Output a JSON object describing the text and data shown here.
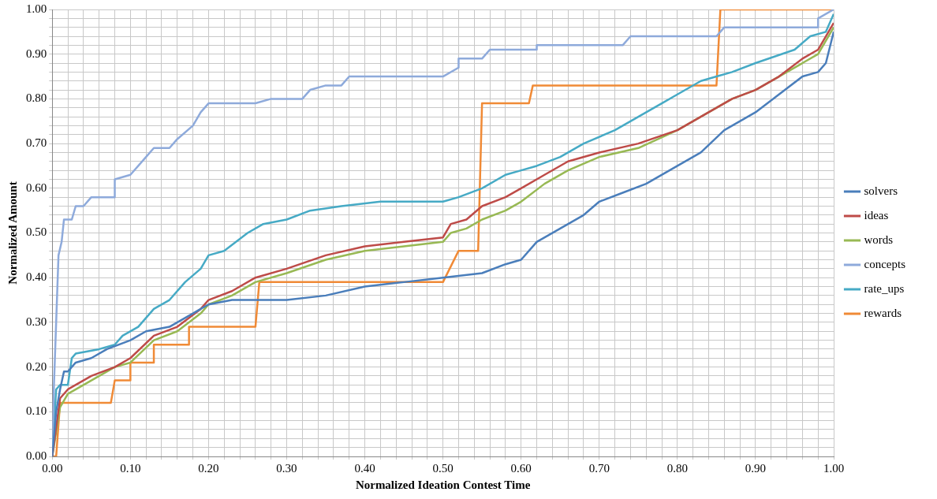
{
  "chart_data": {
    "type": "line",
    "xlabel": "Normalized Ideation Contest Time",
    "ylabel": "Normalized Amount",
    "xlim": [
      0,
      1
    ],
    "ylim": [
      0,
      1
    ],
    "xticks": [
      {
        "value": 0,
        "label": "0.00"
      },
      {
        "value": 0.02,
        "label": null
      },
      {
        "value": 0.04,
        "label": null
      },
      {
        "value": 0.06,
        "label": null
      },
      {
        "value": 0.08,
        "label": null
      },
      {
        "value": 0.1,
        "label": "0.10"
      },
      {
        "value": 0.12,
        "label": null
      },
      {
        "value": 0.14,
        "label": null
      },
      {
        "value": 0.16,
        "label": null
      },
      {
        "value": 0.18,
        "label": null
      },
      {
        "value": 0.2,
        "label": "0.20"
      },
      {
        "value": 0.22,
        "label": null
      },
      {
        "value": 0.24,
        "label": null
      },
      {
        "value": 0.26,
        "label": null
      },
      {
        "value": 0.28,
        "label": null
      },
      {
        "value": 0.3,
        "label": "0.30"
      },
      {
        "value": 0.32,
        "label": null
      },
      {
        "value": 0.34,
        "label": null
      },
      {
        "value": 0.36,
        "label": null
      },
      {
        "value": 0.38,
        "label": null
      },
      {
        "value": 0.4,
        "label": "0.40"
      },
      {
        "value": 0.42,
        "label": null
      },
      {
        "value": 0.44,
        "label": null
      },
      {
        "value": 0.46,
        "label": null
      },
      {
        "value": 0.48,
        "label": null
      },
      {
        "value": 0.5,
        "label": "0.50"
      },
      {
        "value": 0.52,
        "label": null
      },
      {
        "value": 0.54,
        "label": null
      },
      {
        "value": 0.56,
        "label": null
      },
      {
        "value": 0.58,
        "label": null
      },
      {
        "value": 0.6,
        "label": "0.60"
      },
      {
        "value": 0.62,
        "label": null
      },
      {
        "value": 0.64,
        "label": null
      },
      {
        "value": 0.66,
        "label": null
      },
      {
        "value": 0.68,
        "label": null
      },
      {
        "value": 0.7,
        "label": "0.70"
      },
      {
        "value": 0.72,
        "label": null
      },
      {
        "value": 0.74,
        "label": null
      },
      {
        "value": 0.76,
        "label": null
      },
      {
        "value": 0.78,
        "label": null
      },
      {
        "value": 0.8,
        "label": "0.80"
      },
      {
        "value": 0.82,
        "label": null
      },
      {
        "value": 0.84,
        "label": null
      },
      {
        "value": 0.86,
        "label": null
      },
      {
        "value": 0.88,
        "label": null
      },
      {
        "value": 0.9,
        "label": "0.90"
      },
      {
        "value": 0.92,
        "label": null
      },
      {
        "value": 0.94,
        "label": null
      },
      {
        "value": 0.96,
        "label": null
      },
      {
        "value": 0.98,
        "label": null
      },
      {
        "value": 1,
        "label": "1.00"
      }
    ],
    "yticks": [
      {
        "value": 0,
        "label": "0.00"
      },
      {
        "value": 0.02,
        "label": null
      },
      {
        "value": 0.04,
        "label": null
      },
      {
        "value": 0.06,
        "label": null
      },
      {
        "value": 0.08,
        "label": null
      },
      {
        "value": 0.1,
        "label": "0.10"
      },
      {
        "value": 0.12,
        "label": null
      },
      {
        "value": 0.14,
        "label": null
      },
      {
        "value": 0.16,
        "label": null
      },
      {
        "value": 0.18,
        "label": null
      },
      {
        "value": 0.2,
        "label": "0.20"
      },
      {
        "value": 0.22,
        "label": null
      },
      {
        "value": 0.24,
        "label": null
      },
      {
        "value": 0.26,
        "label": null
      },
      {
        "value": 0.28,
        "label": null
      },
      {
        "value": 0.3,
        "label": "0.30"
      },
      {
        "value": 0.32,
        "label": null
      },
      {
        "value": 0.34,
        "label": null
      },
      {
        "value": 0.36,
        "label": null
      },
      {
        "value": 0.38,
        "label": null
      },
      {
        "value": 0.4,
        "label": "0.40"
      },
      {
        "value": 0.42,
        "label": null
      },
      {
        "value": 0.44,
        "label": null
      },
      {
        "value": 0.46,
        "label": null
      },
      {
        "value": 0.48,
        "label": null
      },
      {
        "value": 0.5,
        "label": "0.50"
      },
      {
        "value": 0.52,
        "label": null
      },
      {
        "value": 0.54,
        "label": null
      },
      {
        "value": 0.56,
        "label": null
      },
      {
        "value": 0.58,
        "label": null
      },
      {
        "value": 0.6,
        "label": "0.60"
      },
      {
        "value": 0.62,
        "label": null
      },
      {
        "value": 0.64,
        "label": null
      },
      {
        "value": 0.66,
        "label": null
      },
      {
        "value": 0.68,
        "label": null
      },
      {
        "value": 0.7,
        "label": "0.70"
      },
      {
        "value": 0.72,
        "label": null
      },
      {
        "value": 0.74,
        "label": null
      },
      {
        "value": 0.76,
        "label": null
      },
      {
        "value": 0.78,
        "label": null
      },
      {
        "value": 0.8,
        "label": "0.80"
      },
      {
        "value": 0.82,
        "label": null
      },
      {
        "value": 0.84,
        "label": null
      },
      {
        "value": 0.86,
        "label": null
      },
      {
        "value": 0.88,
        "label": null
      },
      {
        "value": 0.9,
        "label": "0.90"
      },
      {
        "value": 0.92,
        "label": null
      },
      {
        "value": 0.94,
        "label": null
      },
      {
        "value": 0.96,
        "label": null
      },
      {
        "value": 0.98,
        "label": null
      },
      {
        "value": 1,
        "label": "1.00"
      }
    ],
    "grid": true,
    "legend": "right",
    "marker": "none",
    "line_style": "solid",
    "series": [
      {
        "name": "solvers",
        "color": "#4a7ebb",
        "x": [
          0,
          0.005,
          0.01,
          0.015,
          0.02,
          0.03,
          0.05,
          0.07,
          0.1,
          0.12,
          0.15,
          0.18,
          0.2,
          0.23,
          0.3,
          0.35,
          0.4,
          0.45,
          0.5,
          0.55,
          0.58,
          0.6,
          0.62,
          0.65,
          0.68,
          0.7,
          0.73,
          0.76,
          0.8,
          0.83,
          0.86,
          0.9,
          0.93,
          0.96,
          0.98,
          0.99,
          1
        ],
        "values": [
          0,
          0.1,
          0.15,
          0.19,
          0.19,
          0.21,
          0.22,
          0.24,
          0.26,
          0.28,
          0.29,
          0.32,
          0.34,
          0.35,
          0.35,
          0.36,
          0.38,
          0.39,
          0.4,
          0.41,
          0.43,
          0.44,
          0.48,
          0.51,
          0.54,
          0.57,
          0.59,
          0.61,
          0.65,
          0.68,
          0.73,
          0.77,
          0.81,
          0.85,
          0.86,
          0.88,
          0.95
        ]
      },
      {
        "name": "ideas",
        "color": "#be4b48",
        "x": [
          0,
          0.01,
          0.02,
          0.05,
          0.08,
          0.1,
          0.13,
          0.16,
          0.19,
          0.2,
          0.23,
          0.26,
          0.3,
          0.35,
          0.4,
          0.45,
          0.5,
          0.51,
          0.53,
          0.55,
          0.58,
          0.6,
          0.63,
          0.66,
          0.7,
          0.75,
          0.8,
          0.84,
          0.87,
          0.9,
          0.93,
          0.96,
          0.98,
          1
        ],
        "values": [
          0,
          0.13,
          0.15,
          0.18,
          0.2,
          0.22,
          0.27,
          0.29,
          0.33,
          0.35,
          0.37,
          0.4,
          0.42,
          0.45,
          0.47,
          0.48,
          0.49,
          0.52,
          0.53,
          0.56,
          0.58,
          0.6,
          0.63,
          0.66,
          0.68,
          0.7,
          0.73,
          0.77,
          0.8,
          0.82,
          0.85,
          0.89,
          0.91,
          0.97
        ]
      },
      {
        "name": "words",
        "color": "#98b954",
        "x": [
          0,
          0.01,
          0.02,
          0.05,
          0.08,
          0.1,
          0.13,
          0.16,
          0.19,
          0.2,
          0.23,
          0.26,
          0.3,
          0.35,
          0.4,
          0.45,
          0.5,
          0.51,
          0.53,
          0.55,
          0.58,
          0.6,
          0.63,
          0.66,
          0.7,
          0.75,
          0.8,
          0.84,
          0.87,
          0.9,
          0.93,
          0.96,
          0.98,
          1
        ],
        "values": [
          0,
          0.11,
          0.14,
          0.17,
          0.2,
          0.21,
          0.26,
          0.28,
          0.32,
          0.34,
          0.36,
          0.39,
          0.41,
          0.44,
          0.46,
          0.47,
          0.48,
          0.5,
          0.51,
          0.53,
          0.55,
          0.57,
          0.61,
          0.64,
          0.67,
          0.69,
          0.73,
          0.77,
          0.8,
          0.82,
          0.85,
          0.88,
          0.9,
          0.96
        ]
      },
      {
        "name": "concepts",
        "color": "#8eaadb",
        "x": [
          0,
          0.002,
          0.005,
          0.008,
          0.012,
          0.015,
          0.025,
          0.03,
          0.04,
          0.05,
          0.08,
          0.08,
          0.1,
          0.12,
          0.13,
          0.15,
          0.16,
          0.18,
          0.19,
          0.2,
          0.26,
          0.28,
          0.32,
          0.33,
          0.35,
          0.37,
          0.38,
          0.5,
          0.52,
          0.52,
          0.55,
          0.56,
          0.62,
          0.62,
          0.73,
          0.74,
          0.85,
          0.86,
          0.98,
          0.98,
          1
        ],
        "values": [
          0,
          0.15,
          0.3,
          0.45,
          0.48,
          0.53,
          0.53,
          0.56,
          0.56,
          0.58,
          0.58,
          0.62,
          0.63,
          0.67,
          0.69,
          0.69,
          0.71,
          0.74,
          0.77,
          0.79,
          0.79,
          0.8,
          0.8,
          0.82,
          0.83,
          0.83,
          0.85,
          0.85,
          0.87,
          0.89,
          0.89,
          0.91,
          0.91,
          0.92,
          0.92,
          0.94,
          0.94,
          0.96,
          0.96,
          0.98,
          1
        ]
      },
      {
        "name": "rate_ups",
        "color": "#46aac5",
        "x": [
          0,
          0.005,
          0.01,
          0.02,
          0.025,
          0.03,
          0.06,
          0.08,
          0.09,
          0.11,
          0.13,
          0.15,
          0.17,
          0.19,
          0.2,
          0.22,
          0.25,
          0.27,
          0.3,
          0.33,
          0.37,
          0.42,
          0.5,
          0.52,
          0.55,
          0.58,
          0.6,
          0.62,
          0.65,
          0.68,
          0.72,
          0.75,
          0.78,
          0.8,
          0.83,
          0.85,
          0.87,
          0.9,
          0.95,
          0.97,
          0.99,
          1
        ],
        "values": [
          0,
          0.15,
          0.16,
          0.16,
          0.22,
          0.23,
          0.24,
          0.25,
          0.27,
          0.29,
          0.33,
          0.35,
          0.39,
          0.42,
          0.45,
          0.46,
          0.5,
          0.52,
          0.53,
          0.55,
          0.56,
          0.57,
          0.57,
          0.58,
          0.6,
          0.63,
          0.64,
          0.65,
          0.67,
          0.7,
          0.73,
          0.76,
          0.79,
          0.81,
          0.84,
          0.85,
          0.86,
          0.88,
          0.91,
          0.94,
          0.95,
          0.99
        ]
      },
      {
        "name": "rewards",
        "color": "#f08a36",
        "x": [
          0,
          0.005,
          0.01,
          0.075,
          0.08,
          0.1,
          0.1,
          0.13,
          0.13,
          0.175,
          0.175,
          0.26,
          0.265,
          0.5,
          0.52,
          0.545,
          0.55,
          0.61,
          0.615,
          0.85,
          0.855,
          1
        ],
        "values": [
          0,
          0,
          0.12,
          0.12,
          0.17,
          0.17,
          0.21,
          0.21,
          0.25,
          0.25,
          0.29,
          0.29,
          0.39,
          0.39,
          0.46,
          0.46,
          0.79,
          0.79,
          0.83,
          0.83,
          1,
          1
        ]
      }
    ]
  }
}
